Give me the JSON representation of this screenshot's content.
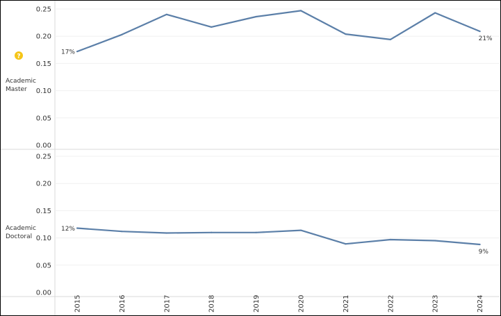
{
  "chart_data": {
    "type": "line",
    "x": [
      2015,
      2016,
      2017,
      2018,
      2019,
      2020,
      2021,
      2022,
      2023,
      2024
    ],
    "x_tick_labels": [
      "2015",
      "2016",
      "2017",
      "2018",
      "2019",
      "2020",
      "2021",
      "2022",
      "2023",
      "2024"
    ],
    "y_tick_labels": [
      "0.00",
      "0.05",
      "0.10",
      "0.15",
      "0.20",
      "0.25"
    ],
    "ylim": [
      0,
      0.25
    ],
    "grid": true,
    "line_color": "#5b7fa8",
    "panels": [
      {
        "row_label_lines": [
          "Academic",
          "Master"
        ],
        "has_help_icon": true,
        "values": [
          0.172,
          0.203,
          0.24,
          0.217,
          0.236,
          0.247,
          0.204,
          0.194,
          0.243,
          0.209
        ],
        "start_label": "17%",
        "end_label": "21%"
      },
      {
        "row_label_lines": [
          "Academic",
          "Doctoral"
        ],
        "has_help_icon": false,
        "values": [
          0.118,
          0.112,
          0.109,
          0.11,
          0.11,
          0.114,
          0.089,
          0.097,
          0.095,
          0.088
        ],
        "start_label": "12%",
        "end_label": "9%"
      }
    ]
  },
  "help_icon": {
    "glyph": "?",
    "color": "#f5c518"
  }
}
